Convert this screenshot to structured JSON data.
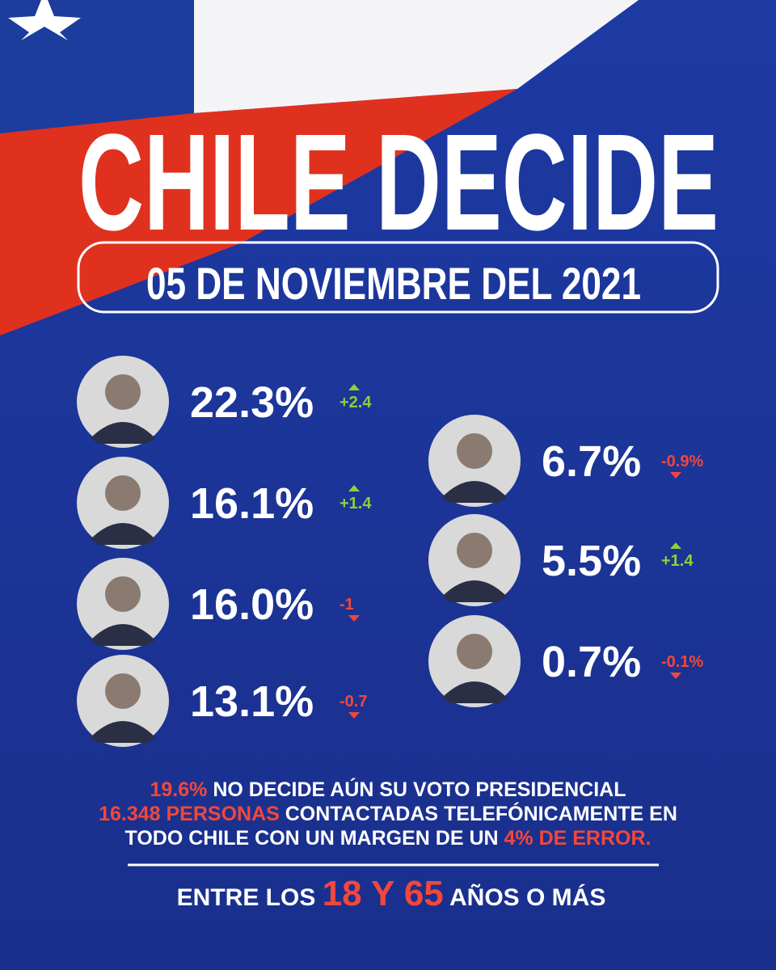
{
  "header": {
    "title": "CHILE DECIDE",
    "date": "05 DE NOVIEMBRE DEL 2021"
  },
  "candidates_left": [
    {
      "percent": "22.3%",
      "change": "+2.4"
    },
    {
      "percent": "16.1%",
      "change": "+1.4"
    },
    {
      "percent": "16.0%",
      "change": "-1"
    },
    {
      "percent": "13.1%",
      "change": "-0.7"
    }
  ],
  "candidates_right": [
    {
      "percent": "6.7%",
      "change": "-0.9%"
    },
    {
      "percent": "5.5%",
      "change": "+1.4"
    },
    {
      "percent": "0.7%",
      "change": "-0.1%"
    }
  ],
  "footer": {
    "lines": [
      [
        {
          "text": "19.6%",
          "highlight": true
        },
        {
          "text": " NO DECIDE AÚN SU VOTO PRESIDENCIAL",
          "highlight": false
        }
      ],
      [
        {
          "text": "16.348 PERSONAS",
          "highlight": true
        },
        {
          "text": " CONTACTADAS TELEFÓNICAMENTE EN",
          "highlight": false
        }
      ],
      [
        {
          "text": "TODO CHILE CON UN MARGEN DE UN ",
          "highlight": false
        },
        {
          "text": "4% DE ERROR.",
          "highlight": true
        }
      ]
    ],
    "age": [
      {
        "text": "ENTRE LOS ",
        "highlight": false
      },
      {
        "text": "18 Y 65",
        "highlight": true
      },
      {
        "text": " AÑOS O MÁS",
        "highlight": false
      }
    ]
  }
}
